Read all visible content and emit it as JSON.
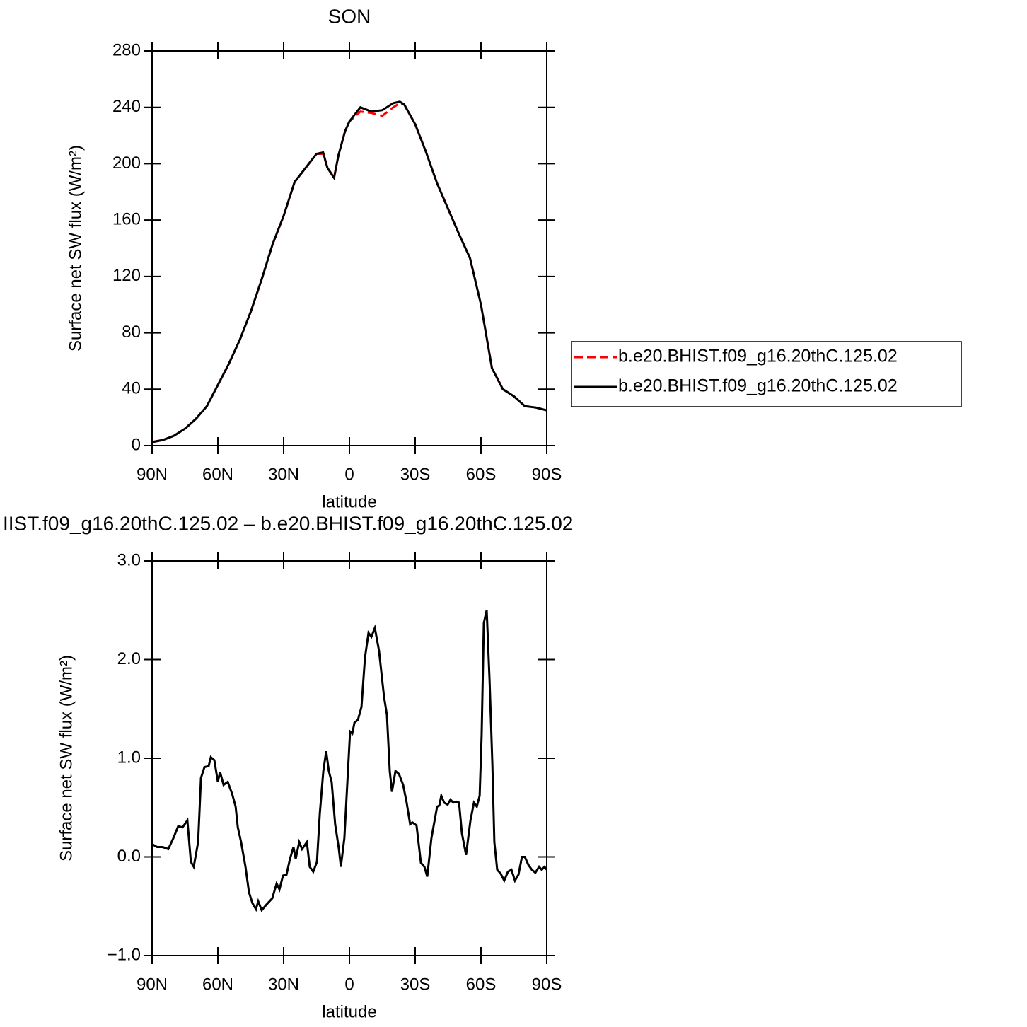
{
  "chart_data": [
    {
      "type": "line",
      "title": "SON",
      "xlabel": "latitude",
      "ylabel": "Surface net SW flux (W/m²)",
      "xlim": [
        90,
        -90
      ],
      "xticks": [
        {
          "value": 90,
          "label": "90N"
        },
        {
          "value": 60,
          "label": "60N"
        },
        {
          "value": 30,
          "label": "30N"
        },
        0,
        {
          "value": -30,
          "label": "30S"
        },
        {
          "value": -60,
          "label": "60S"
        },
        {
          "value": -90,
          "label": "90S"
        }
      ],
      "ylim": [
        0,
        280
      ],
      "yticks": [
        0,
        40,
        80,
        120,
        160,
        200,
        240,
        280
      ],
      "legend": "right",
      "x": [
        90,
        85,
        80,
        75,
        70,
        65,
        60,
        55,
        50,
        45,
        40,
        35,
        30,
        25,
        20,
        15,
        12,
        10,
        7,
        5,
        2,
        0,
        -5,
        -10,
        -15,
        -20,
        -23,
        -25,
        -30,
        -35,
        -40,
        -45,
        -50,
        -55,
        -60,
        -65,
        -70,
        -75,
        -80,
        -85,
        -90
      ],
      "series": [
        {
          "name": "b.e20.BHIST.f09_g16.20thC.125.02",
          "color": "#ff0000",
          "style": "dashed",
          "values": [
            2.5,
            4,
            7,
            12,
            19,
            28,
            43,
            58,
            75,
            95,
            118,
            143,
            163,
            187,
            197,
            207,
            207,
            197,
            190,
            206,
            223,
            230,
            237,
            236,
            234,
            240,
            243,
            242,
            228,
            208,
            186,
            168,
            150,
            133,
            100,
            55,
            40,
            35,
            28,
            27,
            25
          ]
        },
        {
          "name": "b.e20.BHIST.f09_g16.20thC.125.02",
          "color": "#000000",
          "style": "solid",
          "values": [
            2.5,
            4,
            7,
            12,
            19,
            28,
            43,
            58,
            75,
            95,
            118,
            143,
            163,
            187,
            197,
            207,
            208,
            197,
            190,
            206,
            223,
            230,
            240,
            237,
            238,
            243,
            244,
            242,
            228,
            208,
            186,
            168,
            150,
            133,
            100,
            55,
            40,
            35,
            28,
            27,
            25
          ]
        }
      ]
    },
    {
      "type": "line",
      "title": "IIST.f09_g16.20thC.125.02 – b.e20.BHIST.f09_g16.20thC.125.02",
      "xlabel": "latitude",
      "ylabel": "Surface net SW flux (W/m²)",
      "xlim": [
        90,
        -90
      ],
      "xticks": [
        {
          "value": 90,
          "label": "90N"
        },
        {
          "value": 60,
          "label": "60N"
        },
        {
          "value": 30,
          "label": "30N"
        },
        0,
        {
          "value": -30,
          "label": "30S"
        },
        {
          "value": -60,
          "label": "60S"
        },
        {
          "value": -90,
          "label": "90S"
        }
      ],
      "ylim": [
        -1,
        3
      ],
      "yticks": [
        {
          "value": -1,
          "label": "−1.0"
        },
        {
          "value": 0,
          "label": "0.0"
        },
        {
          "value": 1,
          "label": "1.0"
        },
        {
          "value": 2,
          "label": "2.0"
        },
        {
          "value": 3,
          "label": "3.0"
        }
      ],
      "x": [
        90,
        87.7,
        85.2,
        82.6,
        80.3,
        78.1,
        76.1,
        73.9,
        72.3,
        71,
        69,
        67.7,
        66.1,
        64.2,
        63.2,
        61.6,
        60,
        59,
        57.4,
        55.5,
        53.5,
        51.9,
        50.9,
        49.4,
        47.4,
        45.8,
        44.2,
        42.6,
        41.6,
        40,
        38.1,
        35.2,
        33.2,
        31.9,
        30.3,
        28.7,
        27.1,
        25.5,
        24.5,
        22.9,
        21.6,
        19.4,
        18.1,
        16.5,
        14.8,
        13.5,
        11.9,
        10.6,
        9.4,
        8.1,
        6.5,
        4.8,
        3.9,
        2.3,
        1,
        -0.3,
        -1.3,
        -2.3,
        -3.9,
        -5.5,
        -7.1,
        -8.7,
        -10,
        -11.6,
        -13.5,
        -15.8,
        -17.1,
        -18.4,
        -19.4,
        -21,
        -22.6,
        -24.5,
        -26.1,
        -27.7,
        -28.7,
        -30.6,
        -32.6,
        -34.2,
        -35.5,
        -37.4,
        -40,
        -41,
        -41.9,
        -43.2,
        -44.8,
        -46.1,
        -47.4,
        -48.7,
        -50,
        -51.3,
        -53.2,
        -55.2,
        -56.8,
        -58.1,
        -59.4,
        -60.3,
        -61.3,
        -62.6,
        -63.9,
        -65.2,
        -66.1,
        -67.4,
        -69,
        -70.6,
        -72.3,
        -73.9,
        -75.5,
        -77.1,
        -78.7,
        -80,
        -81.6,
        -83.2,
        -84.8,
        -86.5,
        -87.7,
        -89,
        -90
      ],
      "series": [
        {
          "color": "#000000",
          "style": "solid",
          "values": [
            0.13,
            0.1,
            0.1,
            0.08,
            0.19,
            0.31,
            0.3,
            0.37,
            -0.05,
            -0.1,
            0.15,
            0.8,
            0.91,
            0.92,
            1.01,
            0.98,
            0.76,
            0.86,
            0.73,
            0.76,
            0.64,
            0.51,
            0.3,
            0.15,
            -0.1,
            -0.36,
            -0.47,
            -0.53,
            -0.45,
            -0.54,
            -0.49,
            -0.42,
            -0.27,
            -0.33,
            -0.19,
            -0.18,
            -0.02,
            0.1,
            -0.02,
            0.15,
            0.08,
            0.15,
            -0.1,
            -0.15,
            -0.05,
            0.44,
            0.87,
            1.07,
            0.87,
            0.76,
            0.33,
            0.08,
            -0.1,
            0.19,
            0.73,
            1.27,
            1.25,
            1.36,
            1.39,
            1.52,
            2.02,
            2.27,
            2.23,
            2.32,
            2.09,
            1.62,
            1.44,
            0.87,
            0.66,
            0.87,
            0.84,
            0.73,
            0.55,
            0.33,
            0.35,
            0.32,
            -0.06,
            -0.1,
            -0.2,
            0.19,
            0.51,
            0.52,
            0.62,
            0.55,
            0.53,
            0.58,
            0.55,
            0.56,
            0.55,
            0.24,
            0.02,
            0.37,
            0.55,
            0.51,
            0.62,
            1.23,
            2.37,
            2.5,
            1.8,
            0.94,
            0.15,
            -0.13,
            -0.17,
            -0.24,
            -0.15,
            -0.13,
            -0.24,
            -0.18,
            0.0,
            0.0,
            -0.08,
            -0.13,
            -0.16,
            -0.1,
            -0.13,
            -0.1,
            -0.13
          ]
        }
      ]
    }
  ]
}
